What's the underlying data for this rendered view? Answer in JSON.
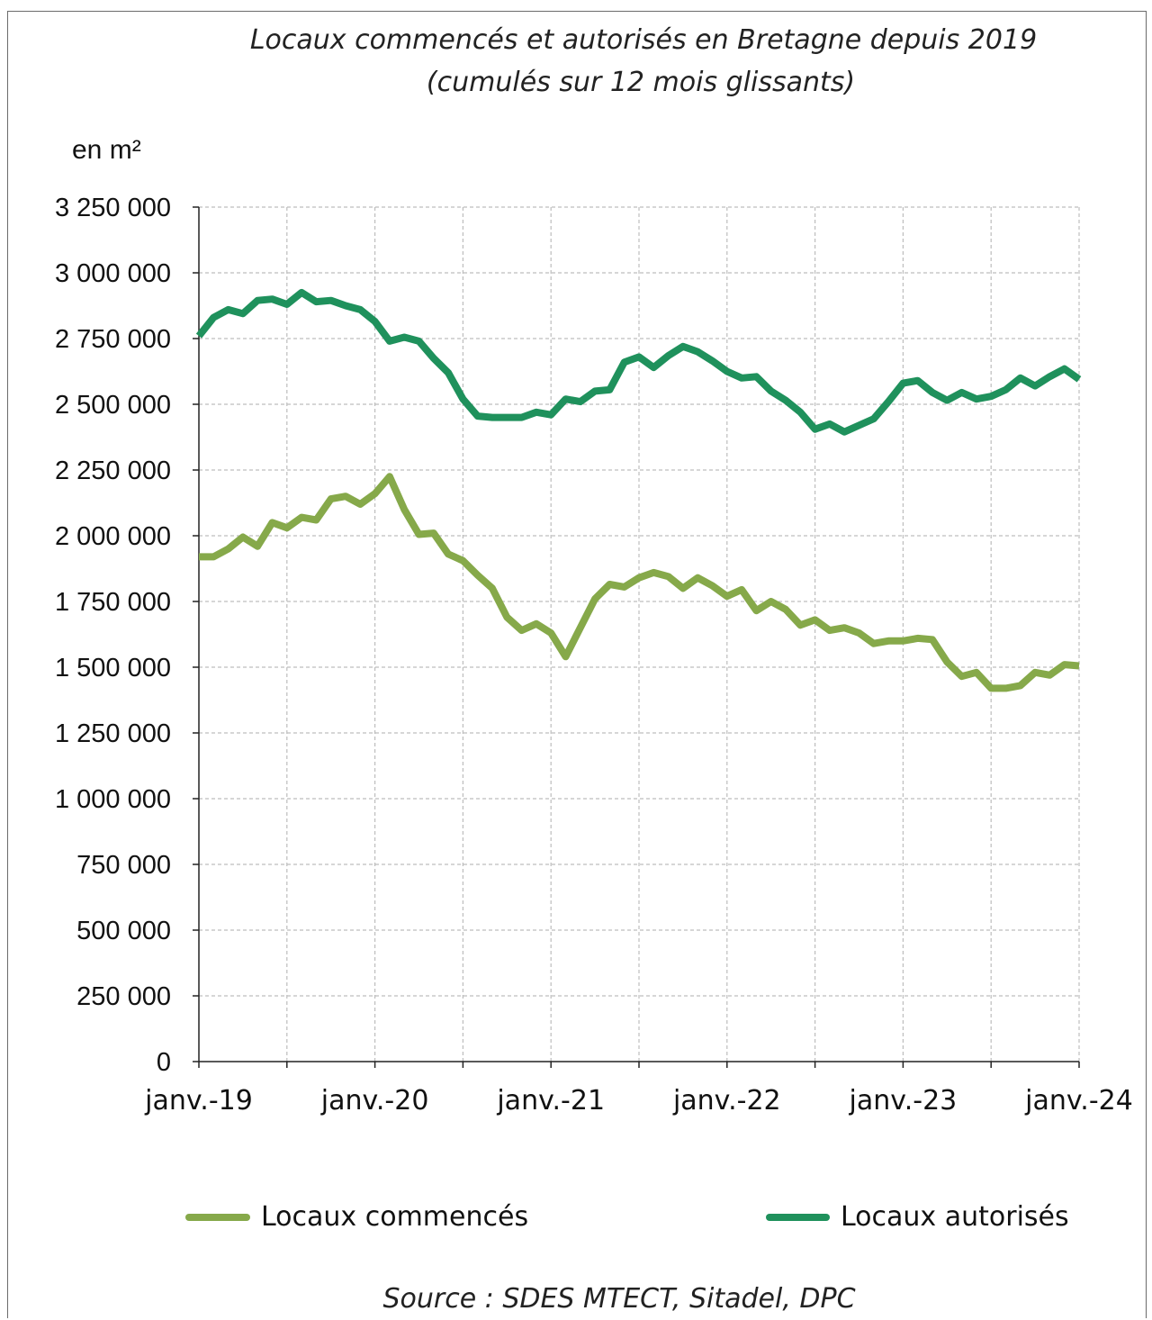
{
  "chart_data": {
    "type": "line",
    "title": "Locaux commencés et autorisés en Bretagne depuis 2019",
    "subtitle": "(cumulés sur 12 mois glissants)",
    "ylabel": "en m²",
    "ylim": [
      0,
      3250000
    ],
    "yticks": [
      0,
      250000,
      500000,
      750000,
      1000000,
      1250000,
      1500000,
      1750000,
      2000000,
      2250000,
      2500000,
      2750000,
      3000000,
      3250000
    ],
    "ytick_labels": [
      "0",
      "250 000",
      "500 000",
      "750 000",
      "1 000 000",
      "1 250 000",
      "1 500 000",
      "1 750 000",
      "2 000 000",
      "2 250 000",
      "2 500 000",
      "2 750 000",
      "3 000 000",
      "3 250 000"
    ],
    "xtick_labels": [
      "janv.-19",
      "janv.-20",
      "janv.-21",
      "janv.-22",
      "janv.-23",
      "janv.-24"
    ],
    "x_start": "janv.-19",
    "x_end": "janv.-24",
    "grid": true,
    "legend_position": "bottom",
    "source": "Source : SDES MTECT, Sitadel, DPC",
    "series": [
      {
        "name": "Locaux commencés",
        "color": "#86a94a",
        "values": [
          1920000,
          1920000,
          1950000,
          1995000,
          1960000,
          2050000,
          2030000,
          2070000,
          2060000,
          2140000,
          2150000,
          2120000,
          2160000,
          2225000,
          2100000,
          2005000,
          2010000,
          1930000,
          1905000,
          1850000,
          1800000,
          1690000,
          1640000,
          1665000,
          1630000,
          1540000,
          1650000,
          1760000,
          1815000,
          1805000,
          1840000,
          1860000,
          1845000,
          1800000,
          1840000,
          1810000,
          1770000,
          1795000,
          1715000,
          1750000,
          1720000,
          1660000,
          1680000,
          1640000,
          1650000,
          1630000,
          1590000,
          1600000,
          1600000,
          1610000,
          1605000,
          1520000,
          1465000,
          1480000,
          1420000,
          1420000,
          1430000,
          1480000,
          1470000,
          1510000,
          1505000
        ]
      },
      {
        "name": "Locaux autorisés",
        "color": "#1f915c",
        "values": [
          2760000,
          2830000,
          2860000,
          2845000,
          2895000,
          2900000,
          2880000,
          2925000,
          2890000,
          2895000,
          2875000,
          2860000,
          2815000,
          2740000,
          2755000,
          2740000,
          2675000,
          2620000,
          2520000,
          2455000,
          2450000,
          2450000,
          2450000,
          2470000,
          2460000,
          2520000,
          2510000,
          2550000,
          2555000,
          2660000,
          2680000,
          2640000,
          2685000,
          2720000,
          2700000,
          2665000,
          2625000,
          2600000,
          2605000,
          2550000,
          2515000,
          2470000,
          2405000,
          2425000,
          2395000,
          2420000,
          2445000,
          2510000,
          2580000,
          2590000,
          2545000,
          2515000,
          2545000,
          2520000,
          2530000,
          2555000,
          2600000,
          2570000,
          2605000,
          2635000,
          2595000
        ]
      }
    ]
  }
}
